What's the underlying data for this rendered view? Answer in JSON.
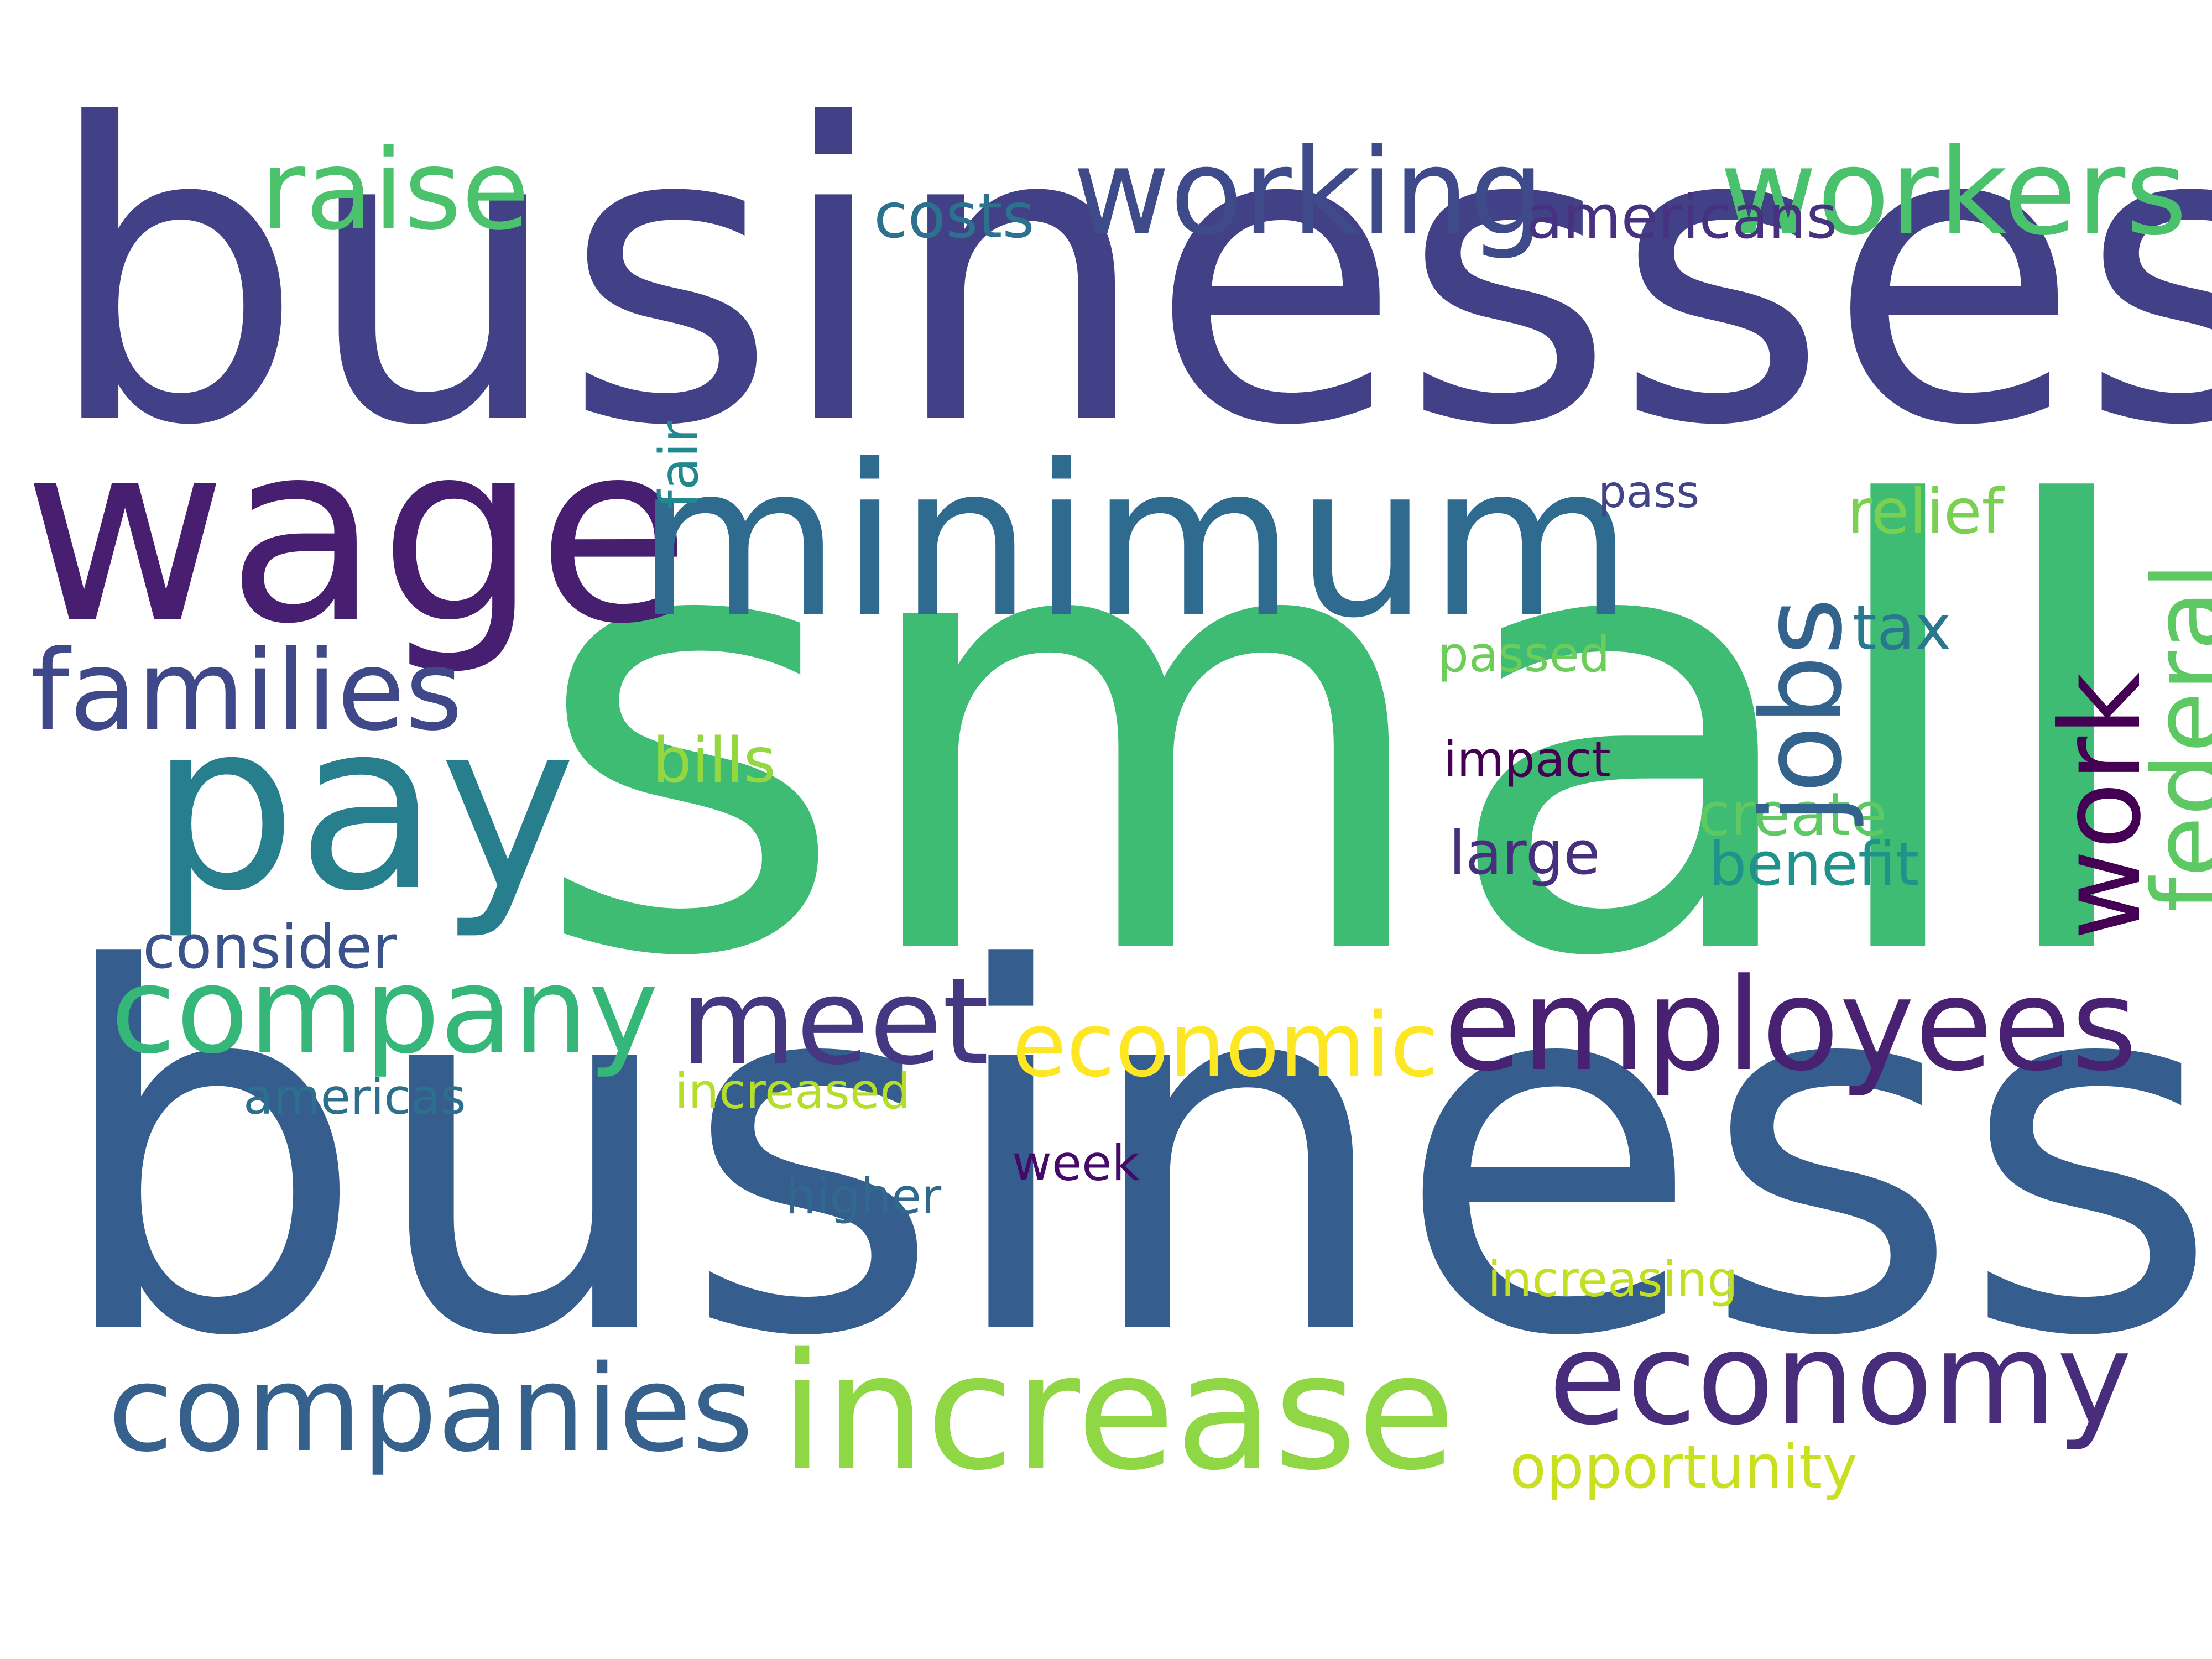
{
  "words": [
    {
      "text": "business",
      "color": "#355d8d"
    },
    {
      "text": "small",
      "color": "#3ebc74"
    },
    {
      "text": "businesses",
      "color": "#424086"
    },
    {
      "text": "wage",
      "color": "#481f70"
    },
    {
      "text": "minimum",
      "color": "#2f6b8e"
    },
    {
      "text": "pay",
      "color": "#277f8e"
    },
    {
      "text": "increase",
      "color": "#8fd744"
    },
    {
      "text": "employees",
      "color": "#482173"
    },
    {
      "text": "companies",
      "color": "#36618d"
    },
    {
      "text": "economy",
      "color": "#472d7b"
    },
    {
      "text": "company",
      "color": "#35b779"
    },
    {
      "text": "meet",
      "color": "#453781"
    },
    {
      "text": "working",
      "color": "#3e4a89"
    },
    {
      "text": "workers",
      "color": "#4ac16d"
    },
    {
      "text": "families",
      "color": "#3f4889"
    },
    {
      "text": "raise",
      "color": "#4cc26c"
    },
    {
      "text": "economic",
      "color": "#fde725"
    },
    {
      "text": "jobs",
      "color": "#33638d"
    },
    {
      "text": "work",
      "color": "#440154"
    },
    {
      "text": "federal",
      "color": "#5ec962"
    },
    {
      "text": "fair",
      "color": "#23888e"
    },
    {
      "text": "costs",
      "color": "#2c728e"
    },
    {
      "text": "americans",
      "color": "#46327e"
    },
    {
      "text": "consider",
      "color": "#3b528b"
    },
    {
      "text": "bills",
      "color": "#93d741"
    },
    {
      "text": "relief",
      "color": "#7ad151"
    },
    {
      "text": "tax",
      "color": "#2a788e"
    },
    {
      "text": "passed",
      "color": "#6ccd5a"
    },
    {
      "text": "impact",
      "color": "#440154"
    },
    {
      "text": "create",
      "color": "#5ec962"
    },
    {
      "text": "benefit",
      "color": "#20928c"
    },
    {
      "text": "large",
      "color": "#46307e"
    },
    {
      "text": "pass",
      "color": "#414487"
    },
    {
      "text": "americas",
      "color": "#2d708e"
    },
    {
      "text": "increased",
      "color": "#b5de2b"
    },
    {
      "text": "week",
      "color": "#450a69"
    },
    {
      "text": "higher",
      "color": "#31688e"
    },
    {
      "text": "increasing",
      "color": "#c2df23"
    },
    {
      "text": "opportunity",
      "color": "#c8e020"
    }
  ]
}
